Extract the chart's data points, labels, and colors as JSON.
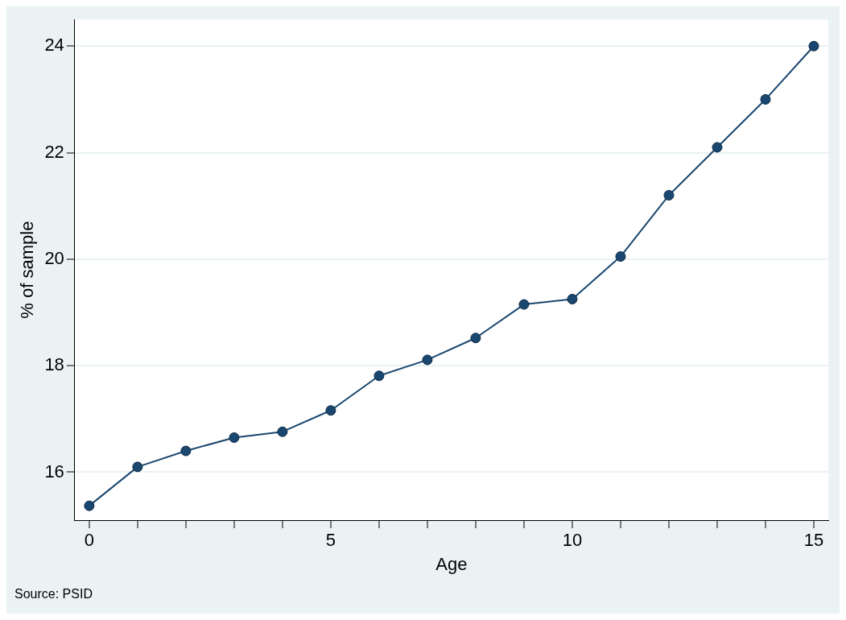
{
  "chart_data": {
    "type": "line",
    "xlabel": "Age",
    "ylabel": "% of sample",
    "annotations": [
      "Source: PSID"
    ],
    "x": [
      0,
      1,
      2,
      3,
      4,
      5,
      6,
      7,
      8,
      9,
      10,
      11,
      12,
      13,
      14,
      15
    ],
    "series": [
      {
        "color": "#1a476f",
        "values": [
          15.37,
          16.1,
          16.4,
          16.65,
          16.76,
          17.16,
          17.81,
          18.11,
          18.52,
          19.15,
          19.25,
          20.05,
          21.2,
          22.1,
          23.0,
          24.0
        ]
      }
    ],
    "xlim": [
      -0.3,
      15.3
    ],
    "ylim": [
      15.1,
      24.5
    ],
    "xticks": [
      0,
      {
        "value": 1,
        "label": null
      },
      {
        "value": 2,
        "label": null
      },
      {
        "value": 3,
        "label": null
      },
      {
        "value": 4,
        "label": null
      },
      5,
      {
        "value": 6,
        "label": null
      },
      {
        "value": 7,
        "label": null
      },
      {
        "value": 8,
        "label": null
      },
      {
        "value": 9,
        "label": null
      },
      10,
      {
        "value": 11,
        "label": null
      },
      {
        "value": 12,
        "label": null
      },
      {
        "value": 13,
        "label": null
      },
      {
        "value": 14,
        "label": null
      },
      15
    ],
    "yticks": [
      16,
      18,
      20,
      22,
      24
    ],
    "grid": "y",
    "legend": false,
    "marker": "circle",
    "line_style": "solid"
  }
}
